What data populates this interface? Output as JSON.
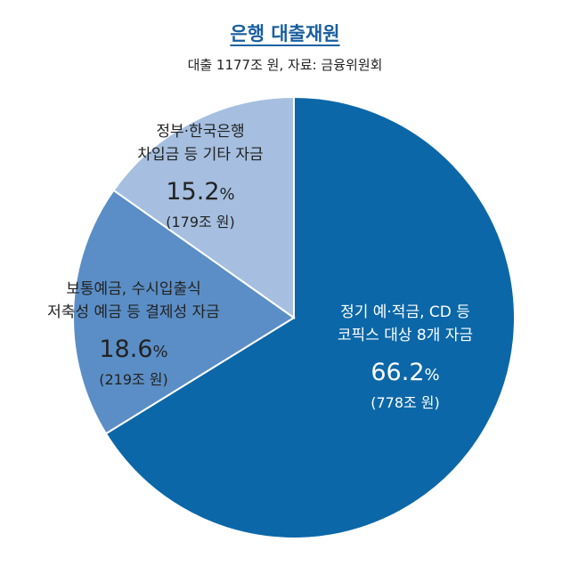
{
  "header": {
    "title": "은행 대출재원",
    "subtitle": "대출 1177조 원, 자료: 금융위원회"
  },
  "chart_data": {
    "type": "pie",
    "title": "은행 대출재원",
    "subtitle": "대출 1177조 원, 자료: 금융위원회",
    "slices": [
      {
        "label_lines": [
          "정기 예·적금, CD 등",
          "코픽스 대상 8개 자금"
        ],
        "percent_text": "66.2",
        "percent_unit": "%",
        "value": 66.2,
        "amount": "(778조 원)",
        "color": "#0b67a8"
      },
      {
        "label_lines": [
          "보통예금, 수시입출식",
          "저축성 예금 등 결제성 자금"
        ],
        "percent_text": "18.6",
        "percent_unit": "%",
        "value": 18.6,
        "amount": "(219조 원)",
        "color": "#5b8ec6"
      },
      {
        "label_lines": [
          "정부·한국은행",
          "차입금 등 기타 자금"
        ],
        "percent_text": "15.2",
        "percent_unit": "%",
        "value": 15.2,
        "amount": "(179조 원)",
        "color": "#a6bfe0"
      }
    ]
  }
}
